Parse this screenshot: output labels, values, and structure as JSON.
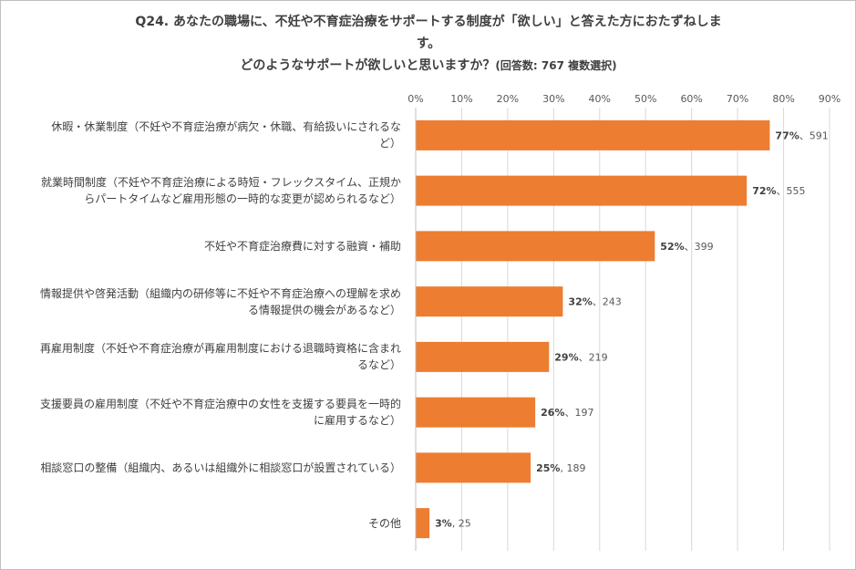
{
  "chart_data": {
    "type": "bar",
    "orientation": "horizontal",
    "title_line1": "Q24. あなたの職場に、不妊や不育症治療をサポートする制度が「欲しい」と答えた方におたずねしま",
    "title_line2": "す。",
    "title_line3": "どのようなサポートが欲しいと思いますか？",
    "title_note": "(回答数: 767 複数選択)",
    "xlim": [
      0,
      90
    ],
    "ticks": [
      0,
      10,
      20,
      30,
      40,
      50,
      60,
      70,
      80,
      90
    ],
    "tick_labels": [
      "0%",
      "10%",
      "20%",
      "30%",
      "40%",
      "50%",
      "60%",
      "70%",
      "80%",
      "90%"
    ],
    "grid": true,
    "bar_color": "#ED7D31",
    "categories": [
      [
        "休暇・休業制度（不妊や不育症治療が病欠・休職、有給扱いにされるな",
        "ど）"
      ],
      [
        "就業時間制度（不妊や不育症治療による時短・フレックスタイム、正規か",
        "らパートタイムなど雇用形態の一時的な変更が認められるなど）"
      ],
      [
        "不妊や不育症治療費に対する融資・補助"
      ],
      [
        "情報提供や啓発活動（組織内の研修等に不妊や不育症治療への理解を求め",
        "る情報提供の機会があるなど）"
      ],
      [
        "再雇用制度（不妊や不育症治療が再雇用制度における退職時資格に含まれ",
        "るなど）"
      ],
      [
        "支援要員の雇用制度（不妊や不育症治療中の女性を支援する要員を一時的",
        "に雇用するなど）"
      ],
      [
        "相談窓口の整備（組織内、あるいは組織外に相談窓口が設置されている）"
      ],
      [
        "その他"
      ]
    ],
    "values": [
      77,
      72,
      52,
      32,
      29,
      26,
      25,
      3
    ],
    "pct_labels": [
      "77%",
      "72%",
      "52%",
      "32%",
      "29%",
      "26%",
      "25%",
      "3%"
    ],
    "count_labels": [
      "、591",
      "、555",
      "、399",
      "、243",
      "、219",
      "、197",
      ", 189",
      ", 25"
    ]
  }
}
